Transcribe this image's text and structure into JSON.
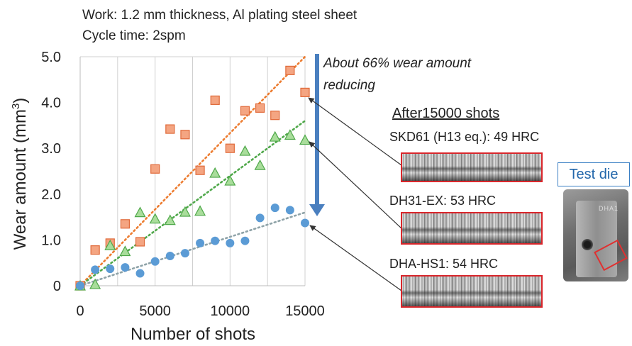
{
  "header": {
    "line1": "Work: 1.2 mm thickness, Al plating  steel sheet",
    "line2": "Cycle time: 2spm"
  },
  "annotation": {
    "line1": "About 66% wear amount",
    "line2": "reducing"
  },
  "samples": {
    "title": "After15000 shots",
    "items": [
      {
        "label": "SKD61 (H13 eq.): 49 HRC"
      },
      {
        "label": "DH31-EX: 53 HRC"
      },
      {
        "label": "DHA-HS1: 54 HRC"
      }
    ]
  },
  "test_die": {
    "label": "Test die"
  },
  "colors": {
    "skd61": "#f4a582",
    "skd61_edge": "#e06a3a",
    "dh31": "#a9dd9b",
    "dh31_edge": "#4fa84a",
    "dha": "#5b9bd5",
    "trend_skd61": "#ed7d31",
    "trend_dh31": "#4fa84a",
    "trend_dha": "#8fa3a8",
    "arrow": "#4a7fbf"
  },
  "chart_data": {
    "type": "scatter",
    "title": "",
    "xlabel": "Number of shots",
    "ylabel": "Wear amount (mm",
    "ylabel_sup": "3",
    "ylabel_end": ")",
    "xlim": [
      0,
      15000
    ],
    "ylim": [
      0,
      5.0
    ],
    "xticks": [
      0,
      5000,
      10000,
      15000
    ],
    "xtick_labels": [
      "0",
      "5000",
      "10000",
      "15000"
    ],
    "yticks": [
      0,
      1,
      2,
      3,
      4,
      5
    ],
    "ytick_labels": [
      "0",
      "1.0",
      "2.0",
      "3.0",
      "4.0",
      "5.0"
    ],
    "grid": "vertical",
    "series": [
      {
        "marker": "square",
        "x": [
          0,
          1000,
          2000,
          3000,
          4000,
          5000,
          6000,
          7000,
          8000,
          9000,
          10000,
          11000,
          12000,
          13000,
          14000,
          15000
        ],
        "y": [
          0.0,
          0.78,
          0.93,
          1.35,
          0.96,
          2.55,
          3.42,
          3.3,
          2.52,
          4.05,
          3.0,
          3.82,
          3.88,
          3.72,
          4.7,
          4.22
        ],
        "trend": [
          [
            0,
            0.0
          ],
          [
            15000,
            5.0
          ]
        ]
      },
      {
        "marker": "triangle",
        "x": [
          0,
          1000,
          2000,
          3000,
          4000,
          5000,
          6000,
          7000,
          8000,
          9000,
          10000,
          11000,
          12000,
          13000,
          14000,
          15000
        ],
        "y": [
          0.0,
          0.03,
          0.88,
          0.75,
          1.6,
          1.46,
          1.43,
          1.61,
          1.63,
          2.46,
          2.29,
          2.94,
          2.63,
          3.25,
          3.29,
          3.18
        ],
        "trend": [
          [
            0,
            0.0
          ],
          [
            15000,
            3.6
          ]
        ]
      },
      {
        "marker": "circle",
        "x": [
          0,
          1000,
          2000,
          3000,
          4000,
          5000,
          6000,
          7000,
          8000,
          9000,
          10000,
          11000,
          12000,
          13000,
          14000,
          15000
        ],
        "y": [
          0.0,
          0.35,
          0.37,
          0.4,
          0.27,
          0.53,
          0.65,
          0.71,
          0.93,
          0.98,
          0.93,
          0.98,
          1.48,
          1.7,
          1.65,
          1.37
        ],
        "trend": [
          [
            0,
            0.0
          ],
          [
            15000,
            1.6
          ]
        ]
      }
    ]
  }
}
